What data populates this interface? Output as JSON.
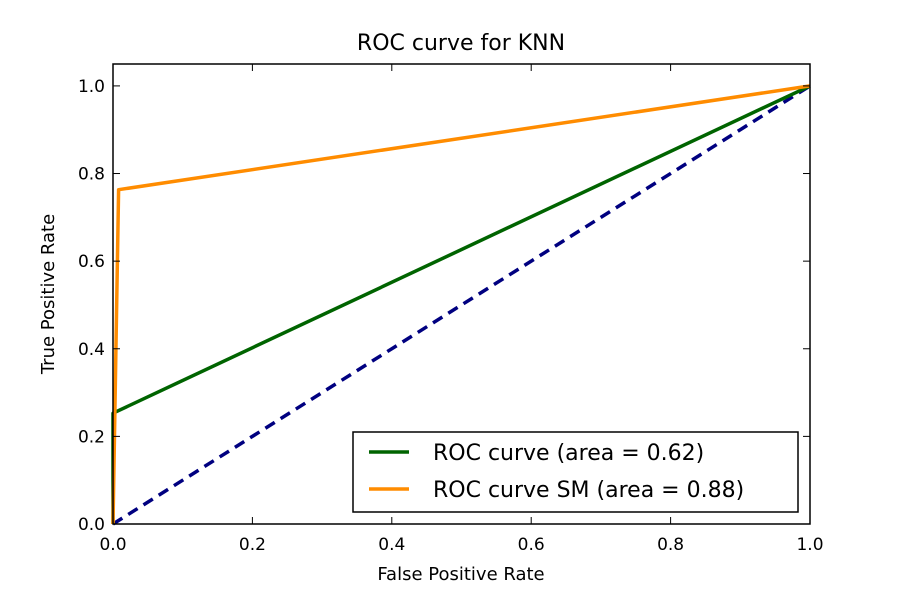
{
  "chart_data": {
    "type": "line",
    "title": "ROC curve for KNN",
    "xlabel": "False Positive Rate",
    "ylabel": "True Positive Rate",
    "xlim": [
      0.0,
      1.0
    ],
    "ylim": [
      0.0,
      1.05
    ],
    "x_ticks": [
      "0.0",
      "0.2",
      "0.4",
      "0.6",
      "0.8",
      "1.0"
    ],
    "y_ticks": [
      "0.0",
      "0.2",
      "0.4",
      "0.6",
      "0.8",
      "1.0"
    ],
    "grid": false,
    "legend_position": "lower-right",
    "series": [
      {
        "name": "ROC curve (area = 0.62)",
        "color": "#006400",
        "style": "solid",
        "x": [
          0.0,
          0.0,
          1.0
        ],
        "y": [
          0.0,
          0.253,
          1.0
        ]
      },
      {
        "name": "ROC curve SM (area = 0.88)",
        "color": "#ff8c00",
        "style": "solid",
        "x": [
          0.0,
          0.008,
          1.0
        ],
        "y": [
          0.0,
          0.763,
          1.0
        ]
      },
      {
        "color": "#000080",
        "style": "dashed",
        "x": [
          0.0,
          1.0
        ],
        "y": [
          0.0,
          1.0
        ]
      }
    ]
  }
}
